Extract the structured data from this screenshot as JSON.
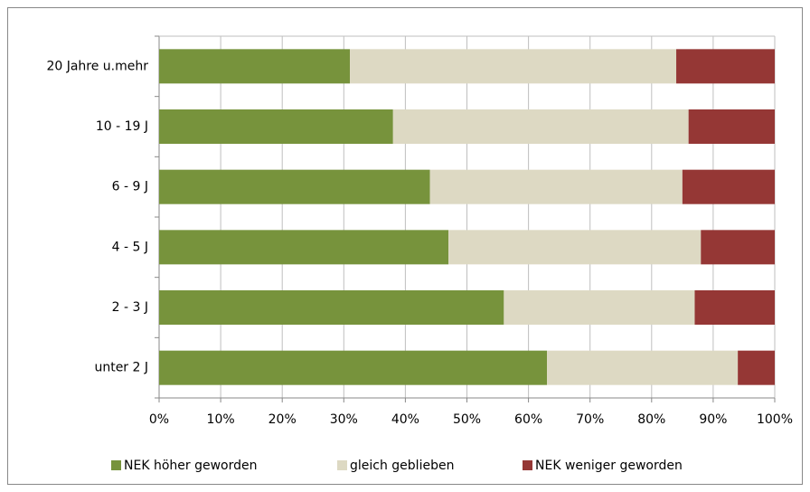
{
  "chart_data": {
    "type": "stacked-bar-horizontal",
    "categories": [
      "20 Jahre u.mehr",
      "10 - 19 J",
      "6 - 9 J",
      "4 - 5 J",
      "2 - 3 J",
      "unter 2 J"
    ],
    "series": [
      {
        "name": "NEK höher geworden",
        "color": "#77933c",
        "values": [
          31,
          38,
          44,
          47,
          56,
          63
        ]
      },
      {
        "name": "gleich geblieben",
        "color": "#ddd9c3",
        "values": [
          53,
          48,
          41,
          41,
          31,
          31
        ]
      },
      {
        "name": "NEK weniger geworden",
        "color": "#953735",
        "values": [
          16,
          14,
          15,
          12,
          13,
          6
        ]
      }
    ],
    "xlim": [
      0,
      100
    ],
    "xticks": [
      {
        "value": 0,
        "label": "0%"
      },
      {
        "value": 10,
        "label": "10%"
      },
      {
        "value": 20,
        "label": "20%"
      },
      {
        "value": 30,
        "label": "30%"
      },
      {
        "value": 40,
        "label": "40%"
      },
      {
        "value": 50,
        "label": "50%"
      },
      {
        "value": 60,
        "label": "60%"
      },
      {
        "value": 70,
        "label": "70%"
      },
      {
        "value": 80,
        "label": "80%"
      },
      {
        "value": 90,
        "label": "90%"
      },
      {
        "value": 100,
        "label": "100%"
      }
    ],
    "grid": true,
    "legend": "bottom"
  }
}
